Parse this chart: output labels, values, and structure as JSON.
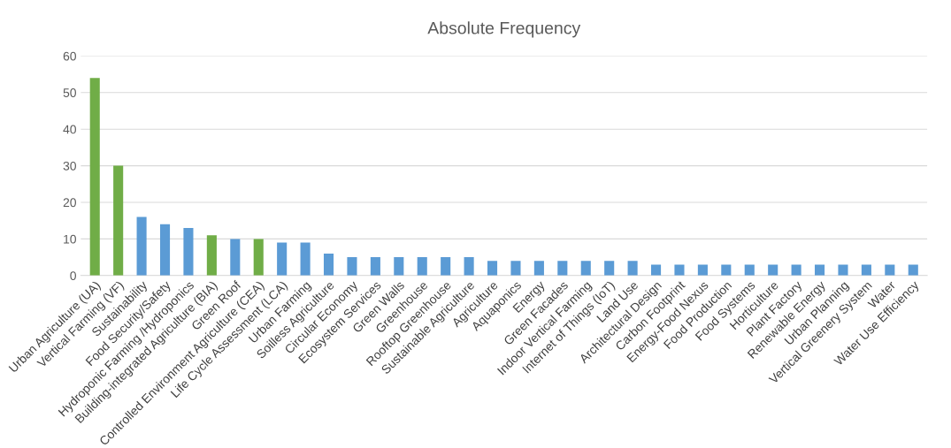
{
  "chart_data": {
    "type": "bar",
    "title": "Absolute Frequency",
    "categories": [
      "Urban Agriculture (UA)",
      "Vertical Farming (VF)",
      "Sustainability",
      "Food Security/Safety",
      "Hydroponic Farming /Hydroponics",
      "Building-integrated Agriculture (BIA)",
      "Green Roof",
      "Controlled Environment Agriculture (CEA)",
      "Life Cycle Assessment (LCA)",
      "Urban Farming",
      "Soilless Agriculture",
      "Circular Economy",
      "Ecosystem Services",
      "Green Walls",
      "Greenhouse",
      "Rooftop Greenhouse",
      "Sustainable Agriculture",
      "Agriculture",
      "Aquaponics",
      "Energy",
      "Green Facades",
      "Indoor Vertical Farming",
      "Internet of Things (IoT)",
      "Land Use",
      "Architectural Design",
      "Carbon Footprint",
      "Energy-Food Nexus",
      "Food Production",
      "Food Systems",
      "Horticulture",
      "Plant Factory",
      "Renewable Energy",
      "Urban Planning",
      "Vertical Greenery System",
      "Water",
      "Water Use Efficiency"
    ],
    "values": [
      54,
      30,
      16,
      14,
      13,
      11,
      10,
      10,
      9,
      9,
      6,
      5,
      5,
      5,
      5,
      5,
      5,
      4,
      4,
      4,
      4,
      4,
      4,
      4,
      3,
      3,
      3,
      3,
      3,
      3,
      3,
      3,
      3,
      3,
      3,
      3
    ],
    "colors": [
      "#70ad47",
      "#70ad47",
      "#5b9bd5",
      "#5b9bd5",
      "#5b9bd5",
      "#70ad47",
      "#5b9bd5",
      "#70ad47",
      "#5b9bd5",
      "#5b9bd5",
      "#5b9bd5",
      "#5b9bd5",
      "#5b9bd5",
      "#5b9bd5",
      "#5b9bd5",
      "#5b9bd5",
      "#5b9bd5",
      "#5b9bd5",
      "#5b9bd5",
      "#5b9bd5",
      "#5b9bd5",
      "#5b9bd5",
      "#5b9bd5",
      "#5b9bd5",
      "#5b9bd5",
      "#5b9bd5",
      "#5b9bd5",
      "#5b9bd5",
      "#5b9bd5",
      "#5b9bd5",
      "#5b9bd5",
      "#5b9bd5",
      "#5b9bd5",
      "#5b9bd5",
      "#5b9bd5",
      "#5b9bd5"
    ],
    "ylim": [
      0,
      60
    ],
    "yticks": [
      0,
      10,
      20,
      30,
      40,
      50,
      60
    ],
    "grid": "y"
  }
}
